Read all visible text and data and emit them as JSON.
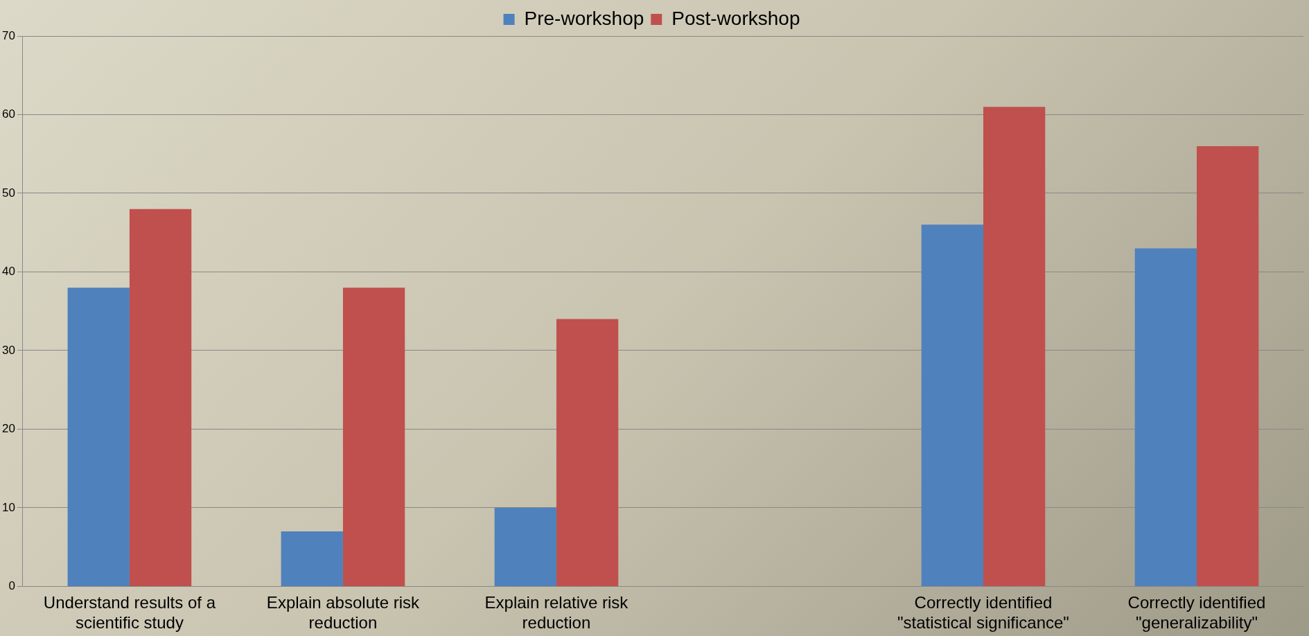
{
  "chart_data": {
    "type": "bar",
    "categories": [
      "Understand results of a scientific study",
      "Explain absolute risk reduction",
      "Explain relative risk reduction",
      null,
      "Correctly identified \"statistical significance\"",
      "Correctly identified \"generalizability\""
    ],
    "series": [
      {
        "name": "Pre-workshop",
        "color": "#4f81bd",
        "values": [
          38,
          7,
          10,
          null,
          46,
          43
        ]
      },
      {
        "name": "Post-workshop",
        "color": "#c0504d",
        "values": [
          48,
          38,
          34,
          null,
          61,
          56
        ]
      }
    ],
    "ylim": [
      0,
      70
    ],
    "yticks": [
      0,
      10,
      20,
      30,
      40,
      50,
      60,
      70
    ],
    "grid": "y",
    "legend": "top"
  }
}
